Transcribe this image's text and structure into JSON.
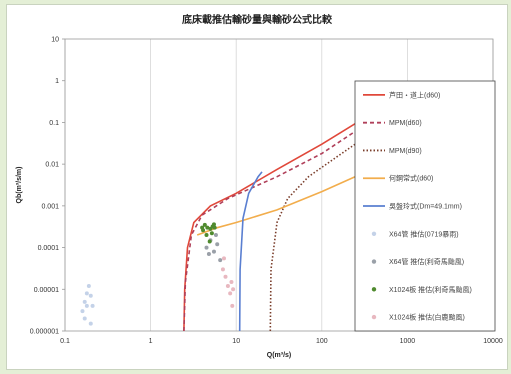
{
  "chart_data": {
    "type": "line",
    "title": "底床載推估輸砂量與輸砂公式比較",
    "xlabel": "Q(m³/s)",
    "ylabel": "Qb(m³/s/m)",
    "xscale": "log",
    "yscale": "log",
    "xlim": [
      0.1,
      10000
    ],
    "ylim": [
      1e-06,
      10
    ],
    "x_ticks": [
      "0.1",
      "1",
      "10",
      "100",
      "1000",
      "10000"
    ],
    "y_ticks": [
      "10",
      "1",
      "0.1",
      "0.01",
      "0.001",
      "0.0001",
      "0.00001",
      "0.000001"
    ],
    "grid": "vertical",
    "legend_position": "right",
    "series": [
      {
        "name": "芦田・道上(d60)",
        "kind": "line",
        "color": "#e0483a",
        "dash": "solid",
        "points": [
          [
            2.45,
            1e-06
          ],
          [
            2.5,
            1e-05
          ],
          [
            2.7,
            0.0001
          ],
          [
            3.2,
            0.0004
          ],
          [
            5,
            0.001
          ],
          [
            10,
            0.002
          ],
          [
            30,
            0.0075
          ],
          [
            100,
            0.03
          ],
          [
            300,
            0.12
          ],
          [
            400,
            0.16
          ]
        ]
      },
      {
        "name": "MPM(d60)",
        "kind": "line",
        "color": "#b0405a",
        "dash": "dashed",
        "points": [
          [
            2.45,
            1e-06
          ],
          [
            2.55,
            1.5e-05
          ],
          [
            3.0,
            0.0002
          ],
          [
            4,
            0.0006
          ],
          [
            8,
            0.0015
          ],
          [
            30,
            0.005
          ],
          [
            100,
            0.018
          ],
          [
            300,
            0.08
          ],
          [
            400,
            0.11
          ]
        ]
      },
      {
        "name": "MPM(d90)",
        "kind": "line",
        "color": "#7a3d2a",
        "dash": "dotted",
        "points": [
          [
            25,
            1e-06
          ],
          [
            25.5,
            3e-05
          ],
          [
            30,
            0.0004
          ],
          [
            40,
            0.0015
          ],
          [
            70,
            0.005
          ],
          [
            150,
            0.015
          ],
          [
            300,
            0.04
          ],
          [
            400,
            0.055
          ]
        ]
      },
      {
        "name": "何鋼常式(d60)",
        "kind": "line",
        "color": "#f2ad4c",
        "dash": "solid",
        "points": [
          [
            3.5,
            0.0002
          ],
          [
            6,
            0.0003
          ],
          [
            10,
            0.0004
          ],
          [
            30,
            0.0008
          ],
          [
            100,
            0.0022
          ],
          [
            300,
            0.006
          ],
          [
            450,
            0.009
          ]
        ]
      },
      {
        "name": "吳盤玲式(Dm=49.1mm)",
        "kind": "line",
        "color": "#5a7fd1",
        "dash": "solid",
        "points": [
          [
            11.0,
            1e-06
          ],
          [
            11.1,
            3e-05
          ],
          [
            12,
            0.0005
          ],
          [
            14,
            0.002
          ],
          [
            18,
            0.005
          ],
          [
            20,
            0.0065
          ]
        ]
      },
      {
        "name": "X64管 推估(0719暴雨)",
        "kind": "scatter",
        "color": "#c4d2e8",
        "points": [
          [
            0.16,
            3e-06
          ],
          [
            0.17,
            5e-06
          ],
          [
            0.18,
            8e-06
          ],
          [
            0.19,
            1.2e-05
          ],
          [
            0.2,
            7e-06
          ],
          [
            0.21,
            4e-06
          ],
          [
            0.17,
            2e-06
          ],
          [
            0.2,
            1.5e-06
          ],
          [
            0.18,
            4e-06
          ]
        ]
      },
      {
        "name": "X64管 推估(利奇馬颱風)",
        "kind": "scatter",
        "color": "#9aa0a8",
        "points": [
          [
            4.5,
            0.0001
          ],
          [
            5,
            0.00015
          ],
          [
            5.5,
            8e-05
          ],
          [
            6,
            0.00012
          ],
          [
            6.5,
            5e-05
          ],
          [
            4.8,
            7e-05
          ],
          [
            5.8,
            0.0002
          ]
        ]
      },
      {
        "name": "X1024板 推估(利奇馬颱風)",
        "kind": "scatter",
        "color": "#4f8a2e",
        "points": [
          [
            4,
            0.0003
          ],
          [
            4.3,
            0.00035
          ],
          [
            4.6,
            0.0003
          ],
          [
            5,
            0.00028
          ],
          [
            5.3,
            0.00032
          ],
          [
            5.6,
            0.0003
          ],
          [
            4.5,
            0.0002
          ],
          [
            5.2,
            0.00022
          ],
          [
            4.1,
            0.00026
          ],
          [
            4.9,
            0.00014
          ],
          [
            5.5,
            0.00036
          ]
        ]
      },
      {
        "name": "X1024板 推估(白鹿颱風)",
        "kind": "scatter",
        "color": "#e8b8c0",
        "points": [
          [
            7,
            3e-05
          ],
          [
            7.5,
            2e-05
          ],
          [
            8,
            1.2e-05
          ],
          [
            8.5,
            8e-06
          ],
          [
            9,
            4e-06
          ],
          [
            7.2,
            5.5e-05
          ],
          [
            8.8,
            1.5e-05
          ],
          [
            9.2,
            1e-05
          ]
        ]
      }
    ]
  }
}
